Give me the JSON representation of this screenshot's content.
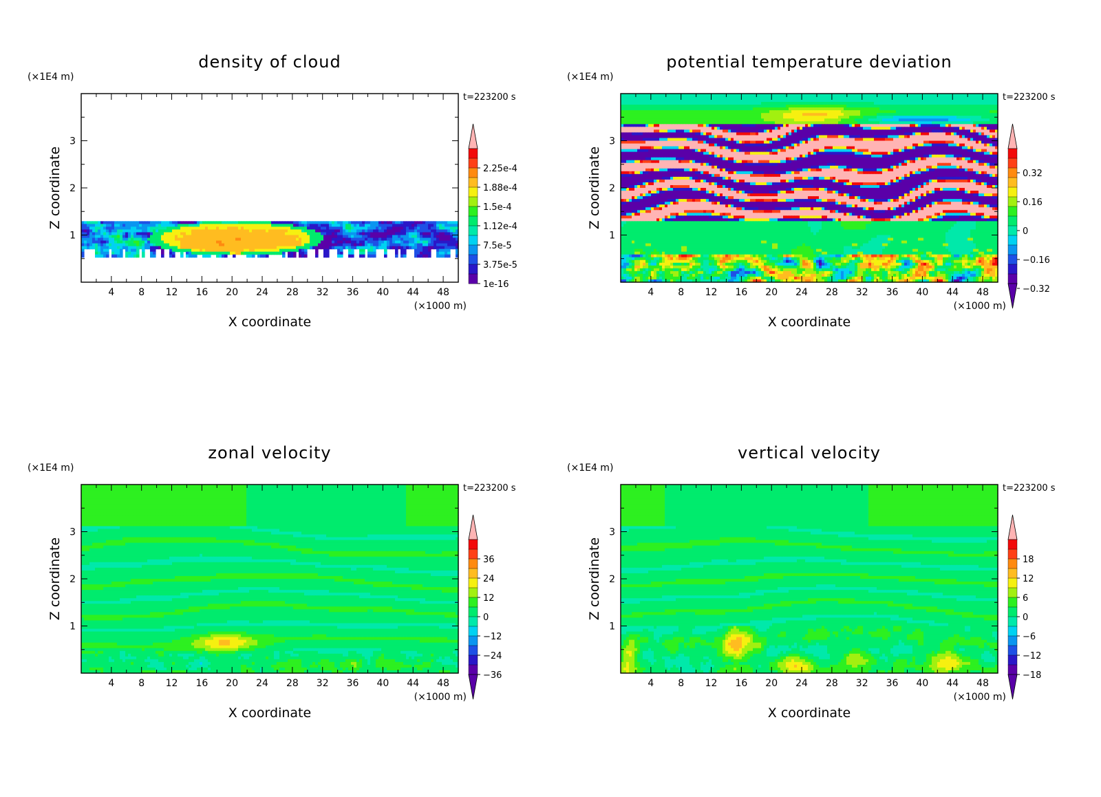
{
  "palette": [
    "#5a00a8",
    "#2a17c8",
    "#1e50e6",
    "#0a95f0",
    "#00d2f2",
    "#00e9aa",
    "#00eb6d",
    "#2df020",
    "#a2f010",
    "#f6f010",
    "#ffbc20",
    "#ff8a10",
    "#ff4016",
    "#f20a0a",
    "#ffb4b4"
  ],
  "chart_data": [
    {
      "type": "heatmap",
      "title": "density of cloud",
      "xlabel": "X coordinate",
      "ylabel": "Z coordinate",
      "x_unit": "(×1000 m)",
      "y_unit": "(×1E4 m)",
      "time_label": "t=223200 s",
      "x_ticks": [
        "4",
        "8",
        "12",
        "16",
        "20",
        "24",
        "28",
        "32",
        "36",
        "40",
        "44",
        "48"
      ],
      "y_ticks": [
        "1",
        "2",
        "3"
      ],
      "xlim": [
        0,
        50
      ],
      "ylim": [
        0,
        4
      ],
      "colorbar_labels": [
        "2.25e-4",
        "1.88e-4",
        "1.5e-4",
        "1.12e-4",
        "7.5e-5",
        "3.75e-5",
        "1e-16"
      ],
      "colorbar_pattern": "cloud"
    },
    {
      "type": "heatmap",
      "title": "potential temperature deviation",
      "xlabel": "X coordinate",
      "ylabel": "Z coordinate",
      "x_unit": "(×1000 m)",
      "y_unit": "(×1E4 m)",
      "time_label": "t=223200 s",
      "x_ticks": [
        "4",
        "8",
        "12",
        "16",
        "20",
        "24",
        "28",
        "32",
        "36",
        "40",
        "44",
        "48"
      ],
      "y_ticks": [
        "1",
        "2",
        "3"
      ],
      "xlim": [
        0,
        50
      ],
      "ylim": [
        0,
        4
      ],
      "colorbar_labels": [
        "0.32",
        "0.16",
        "0",
        "−0.16",
        "−0.32"
      ],
      "colorbar_pattern": "diverging"
    },
    {
      "type": "heatmap",
      "title": "zonal velocity",
      "xlabel": "X coordinate",
      "ylabel": "Z coordinate",
      "x_unit": "(×1000 m)",
      "y_unit": "(×1E4 m)",
      "time_label": "t=223200 s",
      "x_ticks": [
        "4",
        "8",
        "12",
        "16",
        "20",
        "24",
        "28",
        "32",
        "36",
        "40",
        "44",
        "48"
      ],
      "y_ticks": [
        "1",
        "2",
        "3"
      ],
      "xlim": [
        0,
        50
      ],
      "ylim": [
        0,
        4
      ],
      "colorbar_labels": [
        "36",
        "24",
        "12",
        "0",
        "−12",
        "−24",
        "−36"
      ],
      "colorbar_pattern": "diverging"
    },
    {
      "type": "heatmap",
      "title": "vertical velocity",
      "xlabel": "X coordinate",
      "ylabel": "Z coordinate",
      "x_unit": "(×1000 m)",
      "y_unit": "(×1E4 m)",
      "time_label": "t=223200 s",
      "x_ticks": [
        "4",
        "8",
        "12",
        "16",
        "20",
        "24",
        "28",
        "32",
        "36",
        "40",
        "44",
        "48"
      ],
      "y_ticks": [
        "1",
        "2",
        "3"
      ],
      "xlim": [
        0,
        50
      ],
      "ylim": [
        0,
        4
      ],
      "colorbar_labels": [
        "18",
        "12",
        "6",
        "0",
        "−6",
        "−12",
        "−18"
      ],
      "colorbar_pattern": "diverging"
    }
  ]
}
